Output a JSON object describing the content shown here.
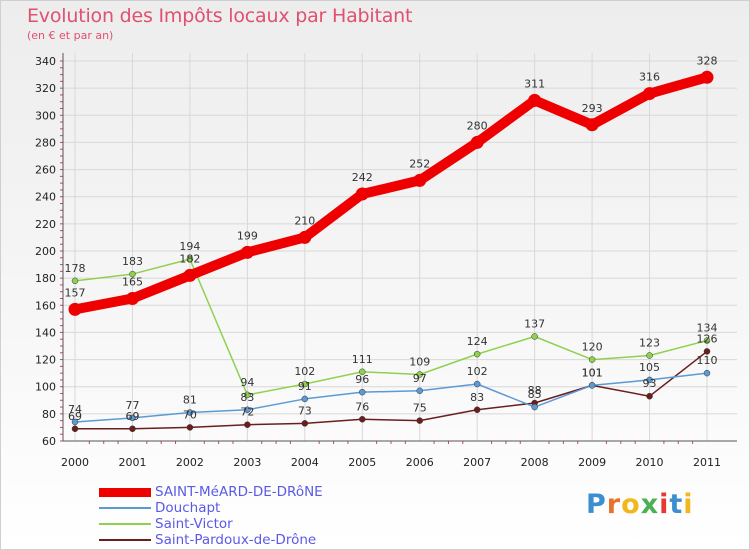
{
  "chart_data": {
    "type": "line",
    "title": "Evolution des Impôts locaux par Habitant",
    "subtitle": "(en € et par an)",
    "xlabel": "",
    "ylabel": "",
    "x": [
      "2000",
      "2001",
      "2002",
      "2003",
      "2004",
      "2005",
      "2006",
      "2007",
      "2008",
      "2009",
      "2010",
      "2011"
    ],
    "ylim": [
      60,
      340
    ],
    "yticks": [
      60,
      80,
      100,
      120,
      140,
      160,
      180,
      200,
      220,
      240,
      260,
      280,
      300,
      320,
      340
    ],
    "grid": true,
    "legend_position": "bottom-left",
    "series": [
      {
        "name": "SAINT-MéARD-DE-DRôNE",
        "color": "#ee0000",
        "values": [
          157,
          165,
          182,
          199,
          210,
          242,
          252,
          280,
          311,
          293,
          316,
          328
        ]
      },
      {
        "name": "Douchapt",
        "color": "#5b9bd5",
        "values": [
          74,
          77,
          81,
          83,
          91,
          96,
          97,
          102,
          85,
          101,
          105,
          110
        ]
      },
      {
        "name": "Saint-Victor",
        "color": "#8fd14f",
        "values": [
          178,
          183,
          194,
          94,
          102,
          111,
          109,
          124,
          137,
          120,
          123,
          134
        ]
      },
      {
        "name": "Saint-Pardoux-de-Drône",
        "color": "#6b1e1e",
        "values": [
          69,
          69,
          70,
          72,
          73,
          76,
          75,
          83,
          88,
          101,
          93,
          126
        ]
      }
    ]
  },
  "logo": {
    "text": "Proxiti",
    "colors": [
      "#3b8ed0",
      "#e8722c",
      "#f0b81c",
      "#4caf50",
      "#e53935",
      "#3b8ed0",
      "#f0b81c"
    ]
  }
}
